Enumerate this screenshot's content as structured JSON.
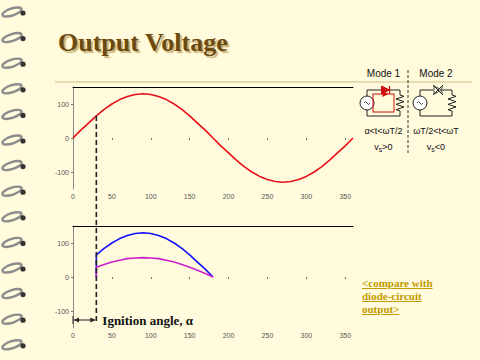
{
  "slide": {
    "title": "Output Voltage",
    "modes": [
      {
        "label": "Mode 1",
        "interval": "α<t<ωT/2",
        "condition": {
          "symbol": "v",
          "subscript": "s",
          "relation": ">0"
        }
      },
      {
        "label": "Mode 2",
        "interval": "ωT/2<t<ωT",
        "condition": {
          "symbol": "v",
          "subscript": "s",
          "relation": "<0"
        }
      }
    ],
    "annotation": "Ignition angle, α",
    "link": [
      "<compare with",
      "diode-circuit",
      "output>"
    ]
  },
  "chart_data": [
    {
      "type": "line",
      "x": [
        0,
        10,
        20,
        30,
        40,
        50,
        60,
        70,
        80,
        90,
        100,
        110,
        120,
        130,
        140,
        150,
        160,
        170,
        180,
        190,
        200,
        210,
        220,
        230,
        240,
        250,
        260,
        270,
        280,
        290,
        300,
        310,
        320,
        330,
        340,
        350,
        360
      ],
      "series": [
        {
          "color": "#e8101c",
          "values": [
            0,
            23,
            44,
            65,
            84,
            100,
            113,
            122,
            128,
            130,
            128,
            122,
            113,
            100,
            84,
            65,
            44,
            23,
            0,
            -23,
            -44,
            -65,
            -84,
            -100,
            -113,
            -122,
            -128,
            -130,
            -128,
            -122,
            -113,
            -100,
            -84,
            -65,
            -44,
            -23,
            0
          ]
        }
      ],
      "xlim": [
        0,
        360
      ],
      "xticks": [
        0,
        50,
        100,
        150,
        200,
        250,
        300,
        350
      ],
      "ylim": [
        -150,
        150
      ],
      "yticks": [
        -100,
        0,
        100
      ],
      "grid": false
    },
    {
      "type": "line",
      "x": [
        30,
        30,
        40,
        50,
        60,
        70,
        80,
        90,
        100,
        110,
        120,
        130,
        140,
        150,
        160,
        170,
        180
      ],
      "series": [
        {
          "color": "#1010ff",
          "values": [
            0,
            65,
            84,
            100,
            113,
            122,
            128,
            130,
            128,
            122,
            113,
            100,
            84,
            65,
            44,
            23,
            0
          ]
        },
        {
          "color": "#cc22cc",
          "values": [
            0,
            29,
            37,
            44,
            49,
            54,
            56,
            57,
            56,
            54,
            49,
            44,
            37,
            29,
            20,
            10,
            0
          ]
        }
      ],
      "xlim": [
        0,
        360
      ],
      "xticks": [
        0,
        50,
        100,
        150,
        200,
        250,
        300,
        350
      ],
      "ylim": [
        -150,
        150
      ],
      "yticks": [
        -100,
        0,
        100
      ],
      "grid": false
    }
  ]
}
